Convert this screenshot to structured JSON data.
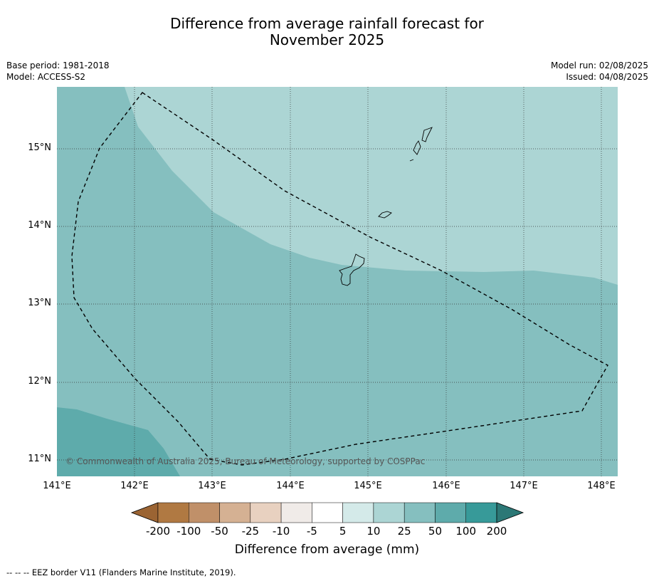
{
  "title_line1": "Difference from average rainfall forecast for",
  "title_line2": "November 2025",
  "meta_left": {
    "base_period": "Base period: 1981-2018",
    "model": "Model: ACCESS-S2"
  },
  "meta_right": {
    "model_run": "Model run: 02/08/2025",
    "issued": "Issued: 04/08/2025"
  },
  "map": {
    "lat_labels": [
      "15°N",
      "14°N",
      "13°N",
      "12°N",
      "11°N"
    ],
    "lon_labels": [
      "141°E",
      "142°E",
      "143°E",
      "144°E",
      "145°E",
      "146°E",
      "147°E",
      "148°E"
    ],
    "copyright": "© Commonwealth of Australia 2025, Bureau of Meteorology, supported by COSPPac",
    "region_colors": {
      "light": "#acd5d4",
      "medium": "#85bfbf",
      "dark": "#5eabab"
    }
  },
  "colorbar": {
    "ticks": [
      "-200",
      "-100",
      "-50",
      "-25",
      "-10",
      "-5",
      "5",
      "10",
      "25",
      "50",
      "100",
      "200"
    ],
    "colors": [
      "#9b6433",
      "#b07942",
      "#c09069",
      "#d5b193",
      "#e8d1c0",
      "#f0ebe8",
      "#ffffff",
      "#d4eae9",
      "#acd5d4",
      "#85bfbf",
      "#5eabab",
      "#379a99",
      "#2c7876"
    ],
    "label": "Difference from average (mm)"
  },
  "footnote": "-- -- -- EEZ border V11 (Flanders Marine Institute, 2019)."
}
